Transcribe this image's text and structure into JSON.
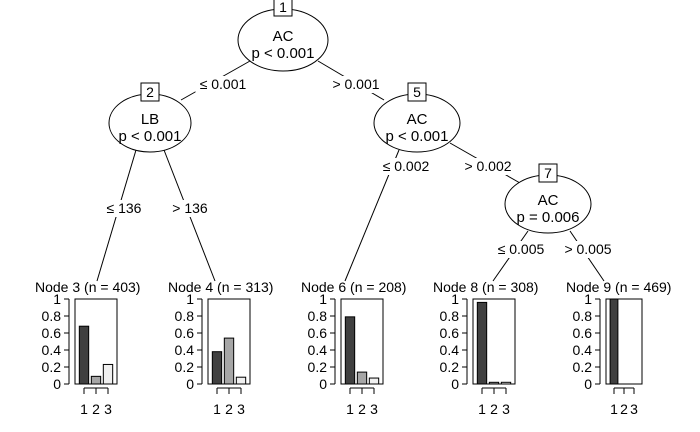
{
  "inner_nodes": [
    {
      "id": "1",
      "variable": "AC",
      "p_value": "p < 0.001"
    },
    {
      "id": "2",
      "variable": "LB",
      "p_value": "p < 0.001"
    },
    {
      "id": "5",
      "variable": "AC",
      "p_value": "p < 0.001"
    },
    {
      "id": "7",
      "variable": "AC",
      "p_value": "p = 0.006"
    }
  ],
  "edges": [
    {
      "from": "1",
      "to": "2",
      "label": "≤ 0.001"
    },
    {
      "from": "1",
      "to": "5",
      "label": "> 0.001"
    },
    {
      "from": "2",
      "to": "3",
      "label": "≤ 136"
    },
    {
      "from": "2",
      "to": "4",
      "label": "> 136"
    },
    {
      "from": "5",
      "to": "6",
      "label": "≤ 0.002"
    },
    {
      "from": "5",
      "to": "7",
      "label": "> 0.002"
    },
    {
      "from": "7",
      "to": "8",
      "label": "≤ 0.005"
    },
    {
      "from": "7",
      "to": "9",
      "label": "> 0.005"
    }
  ],
  "terminal_nodes": [
    {
      "id": "3",
      "title": "Node 3 (n = 403)",
      "values": [
        0.68,
        0.09,
        0.23
      ]
    },
    {
      "id": "4",
      "title": "Node 4 (n = 313)",
      "values": [
        0.38,
        0.54,
        0.08
      ]
    },
    {
      "id": "6",
      "title": "Node 6 (n = 208)",
      "values": [
        0.79,
        0.14,
        0.07
      ]
    },
    {
      "id": "8",
      "title": "Node 8 (n = 308)",
      "values": [
        0.96,
        0.02,
        0.02
      ]
    },
    {
      "id": "9",
      "title": "Node 9 (n = 469)",
      "values": [
        1.0,
        0.0,
        0.0
      ]
    }
  ],
  "y_ticks": [
    "0",
    "0.2",
    "0.4",
    "0.6",
    "0.8",
    "1"
  ],
  "x_ticks": [
    "1",
    "2",
    "3"
  ],
  "bar_colors": [
    "#404040",
    "#a6a6a6",
    "#f0f0f0"
  ],
  "y_range": [
    0,
    1
  ]
}
